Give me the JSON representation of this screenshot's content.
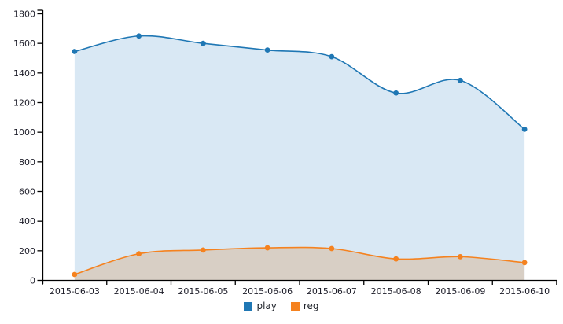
{
  "chart_data": {
    "type": "area",
    "title": "",
    "xlabel": "",
    "ylabel": "",
    "categories": [
      "2015-06-03",
      "2015-06-04",
      "2015-06-05",
      "2015-06-06",
      "2015-06-07",
      "2015-06-08",
      "2015-06-09",
      "2015-06-10"
    ],
    "series": [
      {
        "name": "play",
        "values": [
          1545,
          1650,
          1600,
          1555,
          1510,
          1265,
          1350,
          1020
        ],
        "color": "#1f77b4",
        "fill": "#d9e8f4"
      },
      {
        "name": "reg",
        "values": [
          40,
          180,
          205,
          220,
          215,
          145,
          160,
          120
        ],
        "color": "#f5821f",
        "fill": "#d8cfc5"
      }
    ],
    "ylim": [
      0,
      1800
    ],
    "y_ticks": [
      0,
      200,
      400,
      600,
      800,
      1000,
      1200,
      1400,
      1600,
      1800
    ],
    "grid": false,
    "smooth": true,
    "legend_position": "bottom",
    "axis_color": "#000000",
    "tick_label_color": "#1c1c28"
  }
}
